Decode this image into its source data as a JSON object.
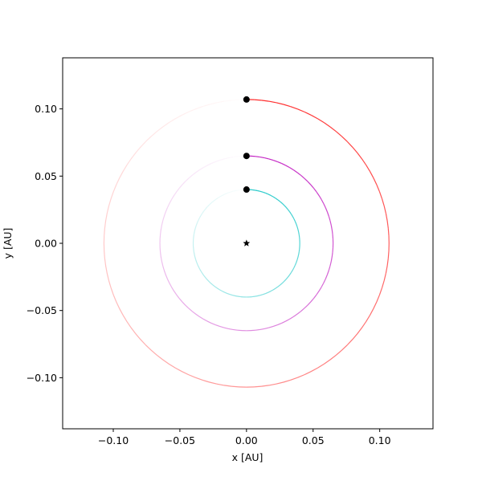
{
  "chart_data": {
    "type": "orbit",
    "xlabel": "x [AU]",
    "ylabel": "y [AU]",
    "xlim": [
      -0.138,
      0.14
    ],
    "ylim": [
      -0.138,
      0.138
    ],
    "xticks": [
      {
        "value": -0.1,
        "label": "−0.10"
      },
      {
        "value": -0.05,
        "label": "−0.05"
      },
      {
        "value": 0,
        "label": "0.00"
      },
      {
        "value": 0.05,
        "label": "0.05"
      },
      {
        "value": 0.1,
        "label": "0.10"
      }
    ],
    "yticks": [
      {
        "value": -0.1,
        "label": "−0.10"
      },
      {
        "value": -0.05,
        "label": "−0.05"
      },
      {
        "value": 0,
        "label": "0.00"
      },
      {
        "value": 0.05,
        "label": "0.05"
      },
      {
        "value": 0.1,
        "label": "0.10"
      }
    ],
    "star": {
      "x": 0,
      "y": 0,
      "color": "#000000"
    },
    "planets": [
      {
        "color": "#1fc8c8",
        "x": 0,
        "y": 0.04,
        "a": 0.04
      },
      {
        "color": "#c21fc2",
        "x": 0,
        "y": 0.065,
        "a": 0.065
      },
      {
        "color": "#ff2a2a",
        "x": 0,
        "y": 0.107,
        "a": 0.107
      }
    ]
  }
}
